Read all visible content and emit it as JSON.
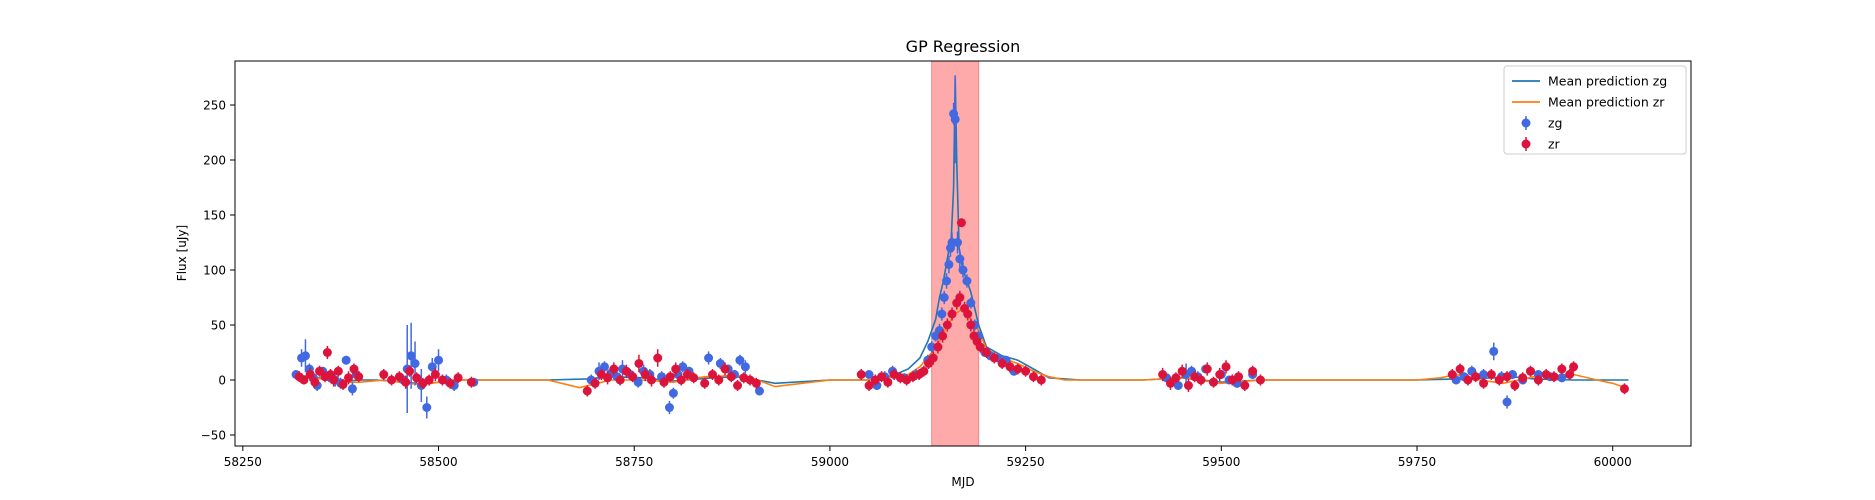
{
  "chart_data": {
    "type": "scatter",
    "title": "GP Regression",
    "xlabel": "MJD",
    "ylabel": "Flux [uJy]",
    "xlim": [
      58240,
      60100
    ],
    "ylim": [
      -60,
      290
    ],
    "xticks": [
      58250,
      58500,
      58750,
      59000,
      59250,
      59500,
      59750,
      60000
    ],
    "yticks": [
      -50,
      0,
      50,
      100,
      150,
      200,
      250
    ],
    "grid": false,
    "legend_position": "top-right",
    "highlight_span": {
      "x": [
        59130,
        59190
      ],
      "color": "#ffaaaa"
    },
    "legend": [
      {
        "label": "Mean prediction zg",
        "kind": "line",
        "color": "#1f77b4"
      },
      {
        "label": "Mean prediction zr",
        "kind": "line",
        "color": "#ff7f0e"
      },
      {
        "label": "zg",
        "kind": "errorbar",
        "color": "#4169e1"
      },
      {
        "label": "zr",
        "kind": "errorbar",
        "color": "#dc143c"
      }
    ],
    "series": [
      {
        "name": "Mean prediction zg",
        "kind": "line",
        "color": "#1f77b4",
        "x": [
          58320,
          58340,
          58360,
          58380,
          58400,
          58420,
          58460,
          58480,
          58500,
          58520,
          58560,
          58640,
          58690,
          58720,
          58760,
          58800,
          58850,
          58880,
          58900,
          58930,
          59000,
          59050,
          59080,
          59100,
          59115,
          59125,
          59135,
          59140,
          59145,
          59150,
          59155,
          59158,
          59160,
          59162,
          59165,
          59170,
          59180,
          59190,
          59200,
          59220,
          59240,
          59260,
          59280,
          59320,
          59400,
          59450,
          59500,
          59550,
          59600,
          59750,
          59800,
          59850,
          59870,
          59900,
          59950,
          60000,
          60020
        ],
        "y": [
          4,
          3,
          0,
          -1,
          0,
          0,
          -2,
          -4,
          -2,
          0,
          0,
          0,
          1,
          3,
          2,
          -1,
          2,
          3,
          1,
          -3,
          0,
          0,
          4,
          10,
          20,
          35,
          55,
          75,
          90,
          110,
          130,
          175,
          275,
          200,
          120,
          100,
          80,
          50,
          30,
          22,
          18,
          10,
          2,
          0,
          0,
          2,
          -2,
          0,
          0,
          0,
          1,
          2,
          3,
          1,
          0,
          0,
          0
        ]
      },
      {
        "name": "Mean prediction zr",
        "kind": "line",
        "color": "#ff7f0e",
        "x": [
          58320,
          58340,
          58360,
          58380,
          58400,
          58430,
          58460,
          58480,
          58500,
          58520,
          58560,
          58640,
          58680,
          58720,
          58760,
          58800,
          58840,
          58880,
          58900,
          58930,
          59000,
          59050,
          59080,
          59100,
          59115,
          59130,
          59140,
          59150,
          59160,
          59170,
          59180,
          59190,
          59200,
          59220,
          59240,
          59260,
          59280,
          59300,
          59400,
          59450,
          59500,
          59550,
          59600,
          59750,
          59780,
          59800,
          59830,
          59860,
          59900,
          59950,
          59980,
          60000,
          60020
        ],
        "y": [
          2,
          2,
          0,
          -2,
          -2,
          0,
          -3,
          -4,
          -2,
          0,
          0,
          0,
          -7,
          0,
          0,
          -2,
          3,
          4,
          2,
          -6,
          0,
          0,
          3,
          5,
          12,
          25,
          35,
          50,
          60,
          65,
          55,
          45,
          28,
          20,
          15,
          8,
          3,
          0,
          0,
          2,
          -3,
          0,
          0,
          0,
          2,
          5,
          0,
          -3,
          3,
          5,
          0,
          -3,
          -8
        ]
      },
      {
        "name": "zg",
        "kind": "errorbar",
        "color": "#4169e1",
        "x": [
          58318,
          58325,
          58330,
          58335,
          58340,
          58345,
          58352,
          58360,
          58368,
          58375,
          58382,
          58390,
          58395,
          58455,
          58460,
          58465,
          58470,
          58478,
          58485,
          58492,
          58500,
          58510,
          58520,
          58545,
          58695,
          58705,
          58712,
          58720,
          58728,
          58735,
          58745,
          58755,
          58762,
          58770,
          58785,
          58795,
          58800,
          58806,
          58812,
          58820,
          58845,
          58860,
          58870,
          58878,
          58885,
          58892,
          58910,
          59050,
          59060,
          59070,
          59080,
          59095,
          59110,
          59125,
          59130,
          59135,
          59140,
          59143,
          59146,
          59149,
          59152,
          59154,
          59156,
          59158,
          59160,
          59163,
          59166,
          59170,
          59175,
          59180,
          59185,
          59190,
          59198,
          59205,
          59215,
          59225,
          59235,
          59430,
          59445,
          59455,
          59462,
          59470,
          59480,
          59490,
          59500,
          59510,
          59520,
          59540,
          59800,
          59810,
          59820,
          59835,
          59848,
          59858,
          59865,
          59872,
          59885,
          59895,
          59905,
          59920,
          59935
        ],
        "y": [
          5,
          20,
          22,
          10,
          2,
          -5,
          8,
          3,
          0,
          -3,
          18,
          -8,
          5,
          0,
          10,
          22,
          15,
          -5,
          -25,
          12,
          18,
          0,
          -5,
          -2,
          0,
          8,
          12,
          6,
          3,
          10,
          5,
          -2,
          8,
          5,
          3,
          -25,
          -12,
          5,
          12,
          8,
          20,
          15,
          10,
          5,
          18,
          12,
          -10,
          5,
          -5,
          3,
          8,
          2,
          5,
          18,
          30,
          40,
          45,
          60,
          75,
          90,
          105,
          120,
          125,
          242,
          237,
          125,
          110,
          100,
          90,
          70,
          50,
          40,
          25,
          22,
          20,
          18,
          8,
          2,
          -5,
          5,
          8,
          3,
          10,
          -2,
          5,
          0,
          -3,
          5,
          0,
          3,
          8,
          5,
          26,
          3,
          -20,
          5,
          0,
          8,
          5,
          3,
          2
        ],
        "yerr": [
          4,
          8,
          15,
          5,
          6,
          5,
          4,
          5,
          6,
          5,
          4,
          6,
          4,
          5,
          40,
          30,
          20,
          15,
          10,
          8,
          10,
          5,
          5,
          4,
          5,
          8,
          5,
          5,
          5,
          8,
          5,
          5,
          6,
          5,
          5,
          6,
          5,
          4,
          5,
          4,
          6,
          5,
          4,
          4,
          5,
          6,
          4,
          3,
          4,
          5,
          5,
          4,
          5,
          5,
          5,
          5,
          6,
          6,
          6,
          7,
          8,
          8,
          9,
          10,
          40,
          10,
          8,
          7,
          6,
          5,
          5,
          5,
          4,
          4,
          4,
          4,
          4,
          4,
          4,
          10,
          5,
          5,
          4,
          4,
          4,
          4,
          4,
          4,
          4,
          4,
          5,
          5,
          8,
          5,
          6,
          4,
          4,
          4,
          4,
          4,
          4
        ]
      },
      {
        "name": "zr",
        "kind": "errorbar",
        "color": "#dc143c",
        "x": [
          58322,
          58328,
          58336,
          58342,
          58348,
          58355,
          58358,
          58362,
          58366,
          58372,
          58378,
          58385,
          58392,
          58398,
          58430,
          58440,
          58450,
          58458,
          58463,
          58472,
          58480,
          58488,
          58496,
          58505,
          58515,
          58525,
          58542,
          58690,
          58700,
          58708,
          58716,
          58724,
          58732,
          58740,
          58748,
          58756,
          58764,
          58772,
          58780,
          58788,
          58796,
          58803,
          58810,
          58818,
          58826,
          58840,
          58850,
          58858,
          58866,
          58874,
          58882,
          58890,
          58898,
          58906,
          59040,
          59050,
          59058,
          59066,
          59074,
          59082,
          59090,
          59098,
          59106,
          59114,
          59120,
          59126,
          59132,
          59138,
          59144,
          59150,
          59156,
          59162,
          59166,
          59168,
          59172,
          59176,
          59180,
          59184,
          59188,
          59192,
          59200,
          59210,
          59220,
          59230,
          59240,
          59250,
          59260,
          59270,
          59425,
          59435,
          59442,
          59450,
          59458,
          59466,
          59474,
          59482,
          59490,
          59498,
          59506,
          59514,
          59522,
          59530,
          59540,
          59550,
          59795,
          59805,
          59815,
          59825,
          59835,
          59845,
          59855,
          59865,
          59875,
          59885,
          59895,
          59905,
          59915,
          59925,
          59935,
          59945,
          59950,
          60015
        ],
        "y": [
          3,
          0,
          5,
          -2,
          8,
          3,
          25,
          5,
          0,
          8,
          -4,
          2,
          10,
          3,
          5,
          0,
          3,
          -2,
          8,
          2,
          -3,
          0,
          5,
          0,
          -3,
          2,
          -2,
          -10,
          -3,
          5,
          2,
          10,
          0,
          8,
          3,
          15,
          5,
          0,
          20,
          -2,
          3,
          10,
          0,
          5,
          2,
          -3,
          5,
          0,
          10,
          3,
          -5,
          2,
          0,
          -3,
          5,
          -5,
          0,
          3,
          -2,
          5,
          2,
          0,
          3,
          5,
          8,
          15,
          20,
          30,
          40,
          50,
          60,
          70,
          75,
          143,
          65,
          60,
          50,
          40,
          35,
          30,
          25,
          20,
          15,
          12,
          10,
          8,
          3,
          0,
          5,
          -3,
          2,
          8,
          -5,
          3,
          0,
          10,
          -2,
          5,
          12,
          0,
          3,
          -5,
          8,
          0,
          5,
          10,
          0,
          3,
          -3,
          5,
          0,
          3,
          -5,
          2,
          8,
          0,
          5,
          3,
          10,
          5,
          12,
          -8
        ],
        "yerr": [
          5,
          4,
          6,
          5,
          5,
          5,
          6,
          5,
          6,
          5,
          5,
          6,
          5,
          5,
          5,
          5,
          5,
          6,
          5,
          5,
          5,
          5,
          6,
          5,
          5,
          5,
          5,
          5,
          5,
          5,
          6,
          6,
          5,
          6,
          5,
          8,
          6,
          6,
          8,
          5,
          5,
          6,
          5,
          5,
          5,
          5,
          5,
          5,
          6,
          5,
          5,
          5,
          5,
          5,
          5,
          5,
          5,
          5,
          5,
          5,
          5,
          5,
          5,
          5,
          5,
          5,
          6,
          6,
          6,
          6,
          6,
          6,
          6,
          4,
          6,
          6,
          6,
          6,
          5,
          5,
          5,
          5,
          5,
          5,
          5,
          5,
          5,
          5,
          6,
          6,
          5,
          6,
          6,
          5,
          5,
          6,
          5,
          6,
          6,
          5,
          5,
          5,
          5,
          5,
          5,
          5,
          5,
          5,
          5,
          5,
          5,
          5,
          5,
          5,
          5,
          5,
          5,
          5,
          5,
          5,
          5,
          5
        ]
      }
    ]
  }
}
